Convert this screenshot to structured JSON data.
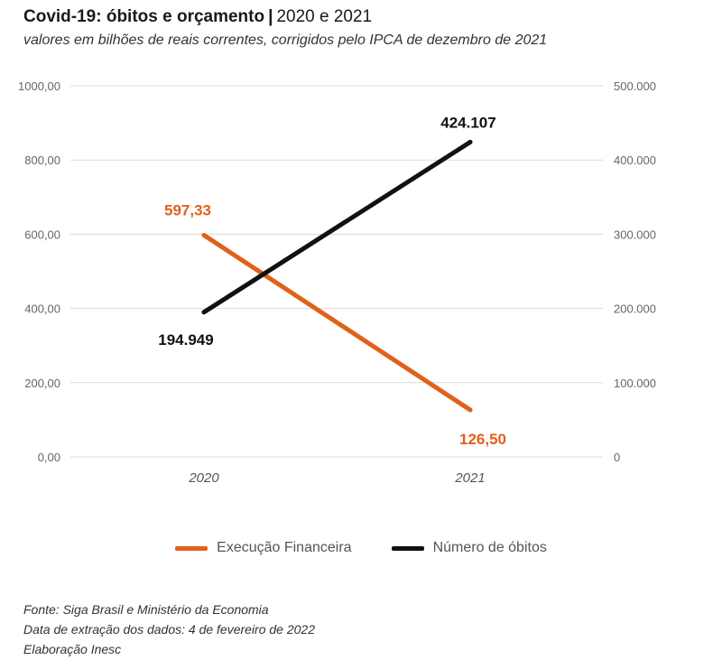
{
  "header": {
    "title_bold": "Covid-19: óbitos e orçamento",
    "title_sep": "|",
    "title_rest": "2020 e 2021",
    "subtitle": "valores em bilhões de reais correntes, corrigidos pelo IPCA de dezembro de 2021"
  },
  "chart_data": {
    "type": "line",
    "categories": [
      "2020",
      "2021"
    ],
    "series": [
      {
        "name": "Execução Financeira",
        "axis": "left",
        "color": "#e0611b",
        "values": [
          597.33,
          126.5
        ],
        "labels": [
          "597,33",
          "126,50"
        ]
      },
      {
        "name": "Número de óbitos",
        "axis": "right",
        "color": "#111111",
        "values": [
          194949,
          424107
        ],
        "labels": [
          "194.949",
          "424.107"
        ]
      }
    ],
    "left_axis": {
      "ylim": [
        0,
        1000
      ],
      "ticks": [
        0,
        200,
        400,
        600,
        800,
        1000
      ],
      "tick_labels": [
        "0,00",
        "200,00",
        "400,00",
        "600,00",
        "800,00",
        "1000,00"
      ]
    },
    "right_axis": {
      "ylim": [
        0,
        500000
      ],
      "ticks": [
        0,
        100000,
        200000,
        300000,
        400000,
        500000
      ],
      "tick_labels": [
        "0",
        "100.000",
        "200.000",
        "300.000",
        "400.000",
        "500.000"
      ]
    },
    "grid": true,
    "legend_position": "bottom"
  },
  "footer": {
    "source": "Fonte: Siga Brasil e Ministério da Economia",
    "extraction": "Data de extração dos dados: 4 de fevereiro de 2022",
    "author": "Elaboração Inesc"
  }
}
